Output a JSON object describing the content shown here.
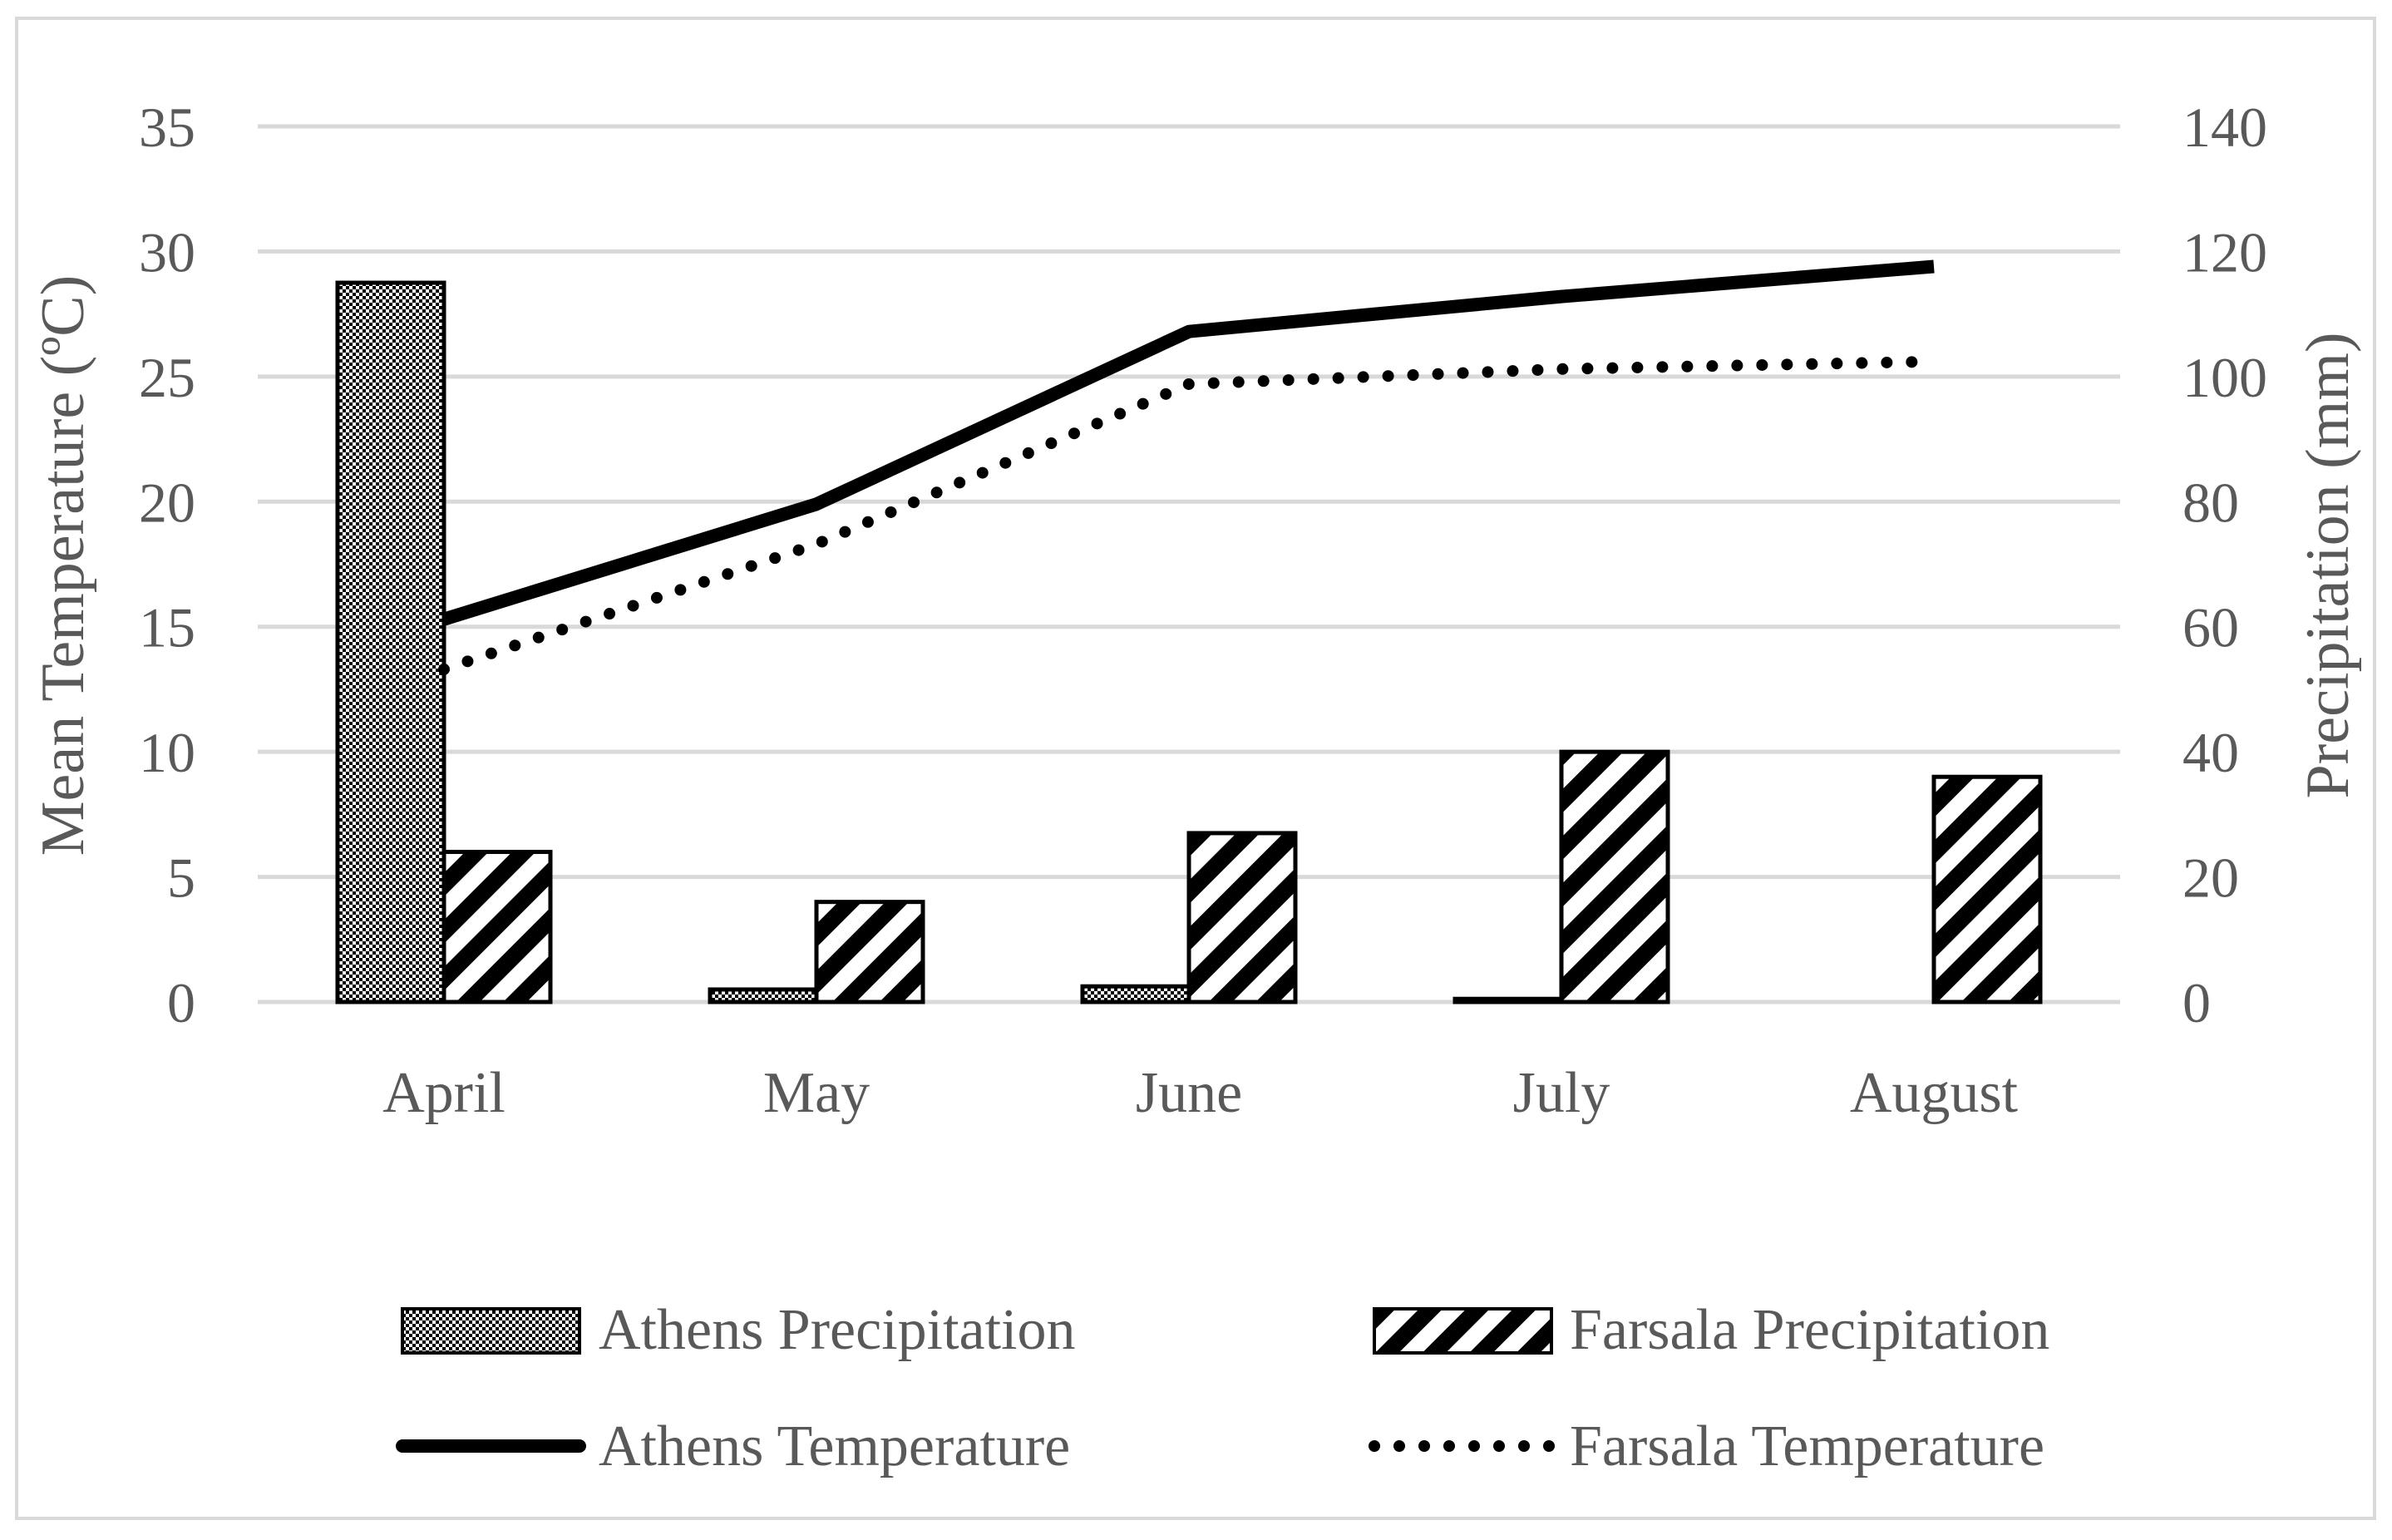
{
  "chart_data": {
    "type": "bar+line",
    "title": "",
    "categories": [
      "April",
      "May",
      "June",
      "July",
      "August"
    ],
    "left_axis": {
      "label": "Mean Temperature (ºC)",
      "ylim": [
        0,
        35
      ],
      "ticks": [
        0,
        5,
        10,
        15,
        20,
        25,
        30,
        35
      ],
      "tick_labels": [
        "0",
        "5",
        "10",
        "15",
        "20",
        "25",
        "30",
        "35"
      ]
    },
    "right_axis": {
      "label": "Precipitation (mm)",
      "ylim": [
        0,
        140
      ],
      "ticks": [
        0,
        20,
        40,
        60,
        80,
        100,
        120,
        140
      ],
      "tick_labels": [
        "0",
        "20",
        "40",
        "60",
        "80",
        "100",
        "120",
        "140"
      ]
    },
    "bar_series": [
      {
        "name": "Athens Precipitation",
        "axis": "right",
        "pattern": "checker",
        "values": [
          115,
          2,
          2.5,
          0.5,
          0
        ]
      },
      {
        "name": "Farsala Precipitation",
        "axis": "right",
        "pattern": "diagonal",
        "values": [
          24,
          16,
          27,
          40,
          36
        ]
      }
    ],
    "line_series": [
      {
        "name": "Athens Temperature",
        "axis": "left",
        "style": "solid",
        "values": [
          15.3,
          19.9,
          26.8,
          28.2,
          29.4
        ]
      },
      {
        "name": "Farsala Temperature",
        "axis": "left",
        "style": "dotted",
        "values": [
          13.3,
          18.3,
          24.7,
          25.3,
          25.6
        ]
      }
    ],
    "grid": true,
    "legend_position": "bottom",
    "legend": [
      "Athens Precipitation",
      "Farsala Precipitation",
      "Athens Temperature",
      "Farsala Temperature"
    ]
  }
}
